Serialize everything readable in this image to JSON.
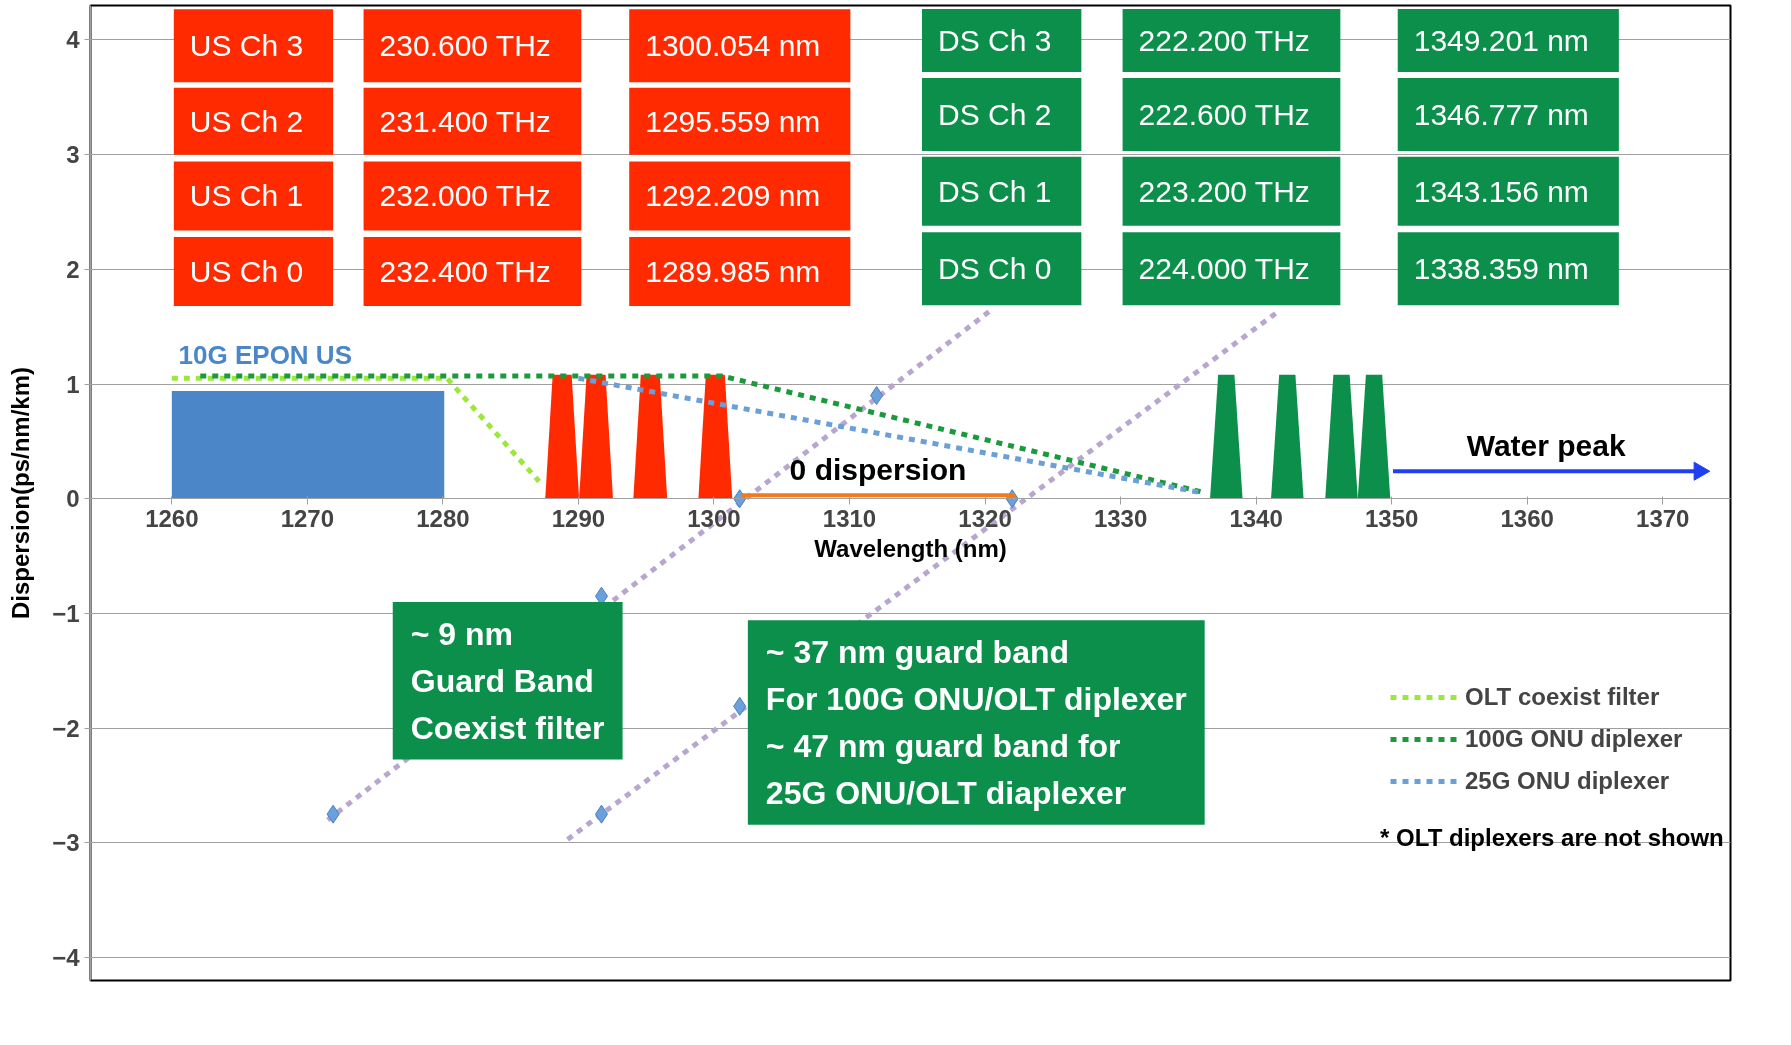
{
  "chart_data": {
    "type": "line",
    "xlabel": "Wavelength (nm)",
    "ylabel": "Dispersion(ps/nm/km)",
    "xlim": [
      1254,
      1375
    ],
    "ylim": [
      -4.2,
      4.3
    ],
    "xticks": [
      1260,
      1270,
      1280,
      1290,
      1300,
      1310,
      1320,
      1330,
      1340,
      1350,
      1360,
      1370
    ],
    "yticks": [
      -4,
      -3,
      -2,
      -1,
      0,
      1,
      2,
      3,
      4
    ],
    "grid": "y",
    "legend": "bottom right",
    "series": [
      {
        "type": "area",
        "name": "10G EPON US",
        "color": "#4a86c8",
        "x": [
          1260,
          1280.1
        ],
        "values": [
          0.94,
          0.94
        ]
      },
      {
        "type": "area",
        "color": "#ff2a00",
        "x": [
          1287.55,
          1288.1,
          1289.5,
          1290.05
        ],
        "values": [
          0,
          1.08,
          1.08,
          0
        ]
      },
      {
        "type": "area",
        "color": "#ff2a00",
        "x": [
          1290.05,
          1290.6,
          1292.0,
          1292.55
        ],
        "values": [
          0,
          1.08,
          1.08,
          0
        ]
      },
      {
        "type": "area",
        "color": "#ff2a00",
        "x": [
          1294.05,
          1294.6,
          1296.0,
          1296.55
        ],
        "values": [
          0,
          1.08,
          1.08,
          0
        ]
      },
      {
        "type": "area",
        "color": "#ff2a00",
        "x": [
          1298.85,
          1299.4,
          1300.8,
          1301.35
        ],
        "values": [
          0,
          1.08,
          1.08,
          0
        ]
      },
      {
        "type": "area",
        "color": "#0b8f4a",
        "x": [
          1336.6,
          1337.2,
          1338.4,
          1339.0
        ],
        "values": [
          0,
          1.08,
          1.08,
          0
        ]
      },
      {
        "type": "area",
        "color": "#0b8f4a",
        "x": [
          1341.1,
          1341.7,
          1342.9,
          1343.5
        ],
        "values": [
          0,
          1.08,
          1.08,
          0
        ]
      },
      {
        "type": "area",
        "color": "#0b8f4a",
        "x": [
          1345.1,
          1345.7,
          1346.9,
          1347.5
        ],
        "values": [
          0,
          1.08,
          1.08,
          0
        ]
      },
      {
        "type": "area",
        "color": "#0b8f4a",
        "x": [
          1347.5,
          1348.1,
          1349.3,
          1349.9
        ],
        "values": [
          0,
          1.08,
          1.08,
          0
        ]
      },
      {
        "line_style": "dashed",
        "marker": "none",
        "color": "#b9a6cf",
        "x": [
          1271.5,
          1320.5
        ],
        "values": [
          -2.8,
          1.65
        ]
      },
      {
        "line_style": "dashed",
        "marker": "none",
        "color": "#b9a6cf",
        "x": [
          1289.2,
          1341.6
        ],
        "values": [
          -2.97,
          1.63
        ]
      },
      {
        "type": "scatter",
        "marker": "diamond",
        "color": "#6aa0dc",
        "x": [
          1271.9,
          1291.7,
          1301.9,
          1312,
          1291.7,
          1301.9,
          1322
        ],
        "values": [
          -2.75,
          -0.85,
          0,
          0.9,
          -2.75,
          -1.81,
          0
        ]
      },
      {
        "line_style": "dashed",
        "marker": "none",
        "name": "OLT coexist filter",
        "color": "#9be83a",
        "x": [
          1260,
          1280.3,
          1287.1
        ],
        "values": [
          1.05,
          1.05,
          0.15
        ]
      },
      {
        "line_style": "dashed",
        "marker": "none",
        "name": "100G ONU diplexer",
        "color": "#1a9a3a",
        "x": [
          1262.1,
          1300.6,
          1336.3
        ],
        "values": [
          1.07,
          1.07,
          0.05
        ]
      },
      {
        "line_style": "dashed",
        "marker": "none",
        "name": "25G ONU diplexer",
        "color": "#6a9fd8",
        "x": [
          1290,
          1336.1
        ],
        "values": [
          1.05,
          0.05
        ]
      },
      {
        "line_style": "solid",
        "marker": "none",
        "name": "0 dispersion",
        "color": "#f07a1e",
        "x": [
          1302,
          1322.2
        ],
        "values": [
          0.03,
          0.03
        ]
      },
      {
        "line_style": "solid",
        "marker": "triangle",
        "name": "Water peak",
        "color": "#1f3ff0",
        "x": [
          1350.1,
          1372.7
        ],
        "values": [
          0.24,
          0.24
        ]
      }
    ],
    "annotations": [
      "US Ch 3",
      "230.600 THz",
      "1300.054 nm",
      "US Ch 2",
      "231.400 THz",
      "1295.559 nm",
      "US Ch 1",
      "232.000 THz",
      "1292.209 nm",
      "US Ch 0",
      "232.400 THz",
      "1289.985 nm",
      "DS Ch 3",
      "222.200 THz",
      "1349.201 nm",
      "DS Ch 2",
      "222.600 THz",
      "1346.777 nm",
      "DS Ch 1",
      "223.200 THz",
      "1343.156 nm",
      "DS Ch 0",
      "224.000 THz",
      "1338.359 nm",
      "~ 9 nm\nGuard Band\nCoexist filter",
      "~ 37 nm guard band\nFor 100G ONU/OLT diplexer\n~ 47 nm guard band for\n25G ONU/OLT diaplexer",
      "* OLT diplexers are not shown"
    ]
  }
}
